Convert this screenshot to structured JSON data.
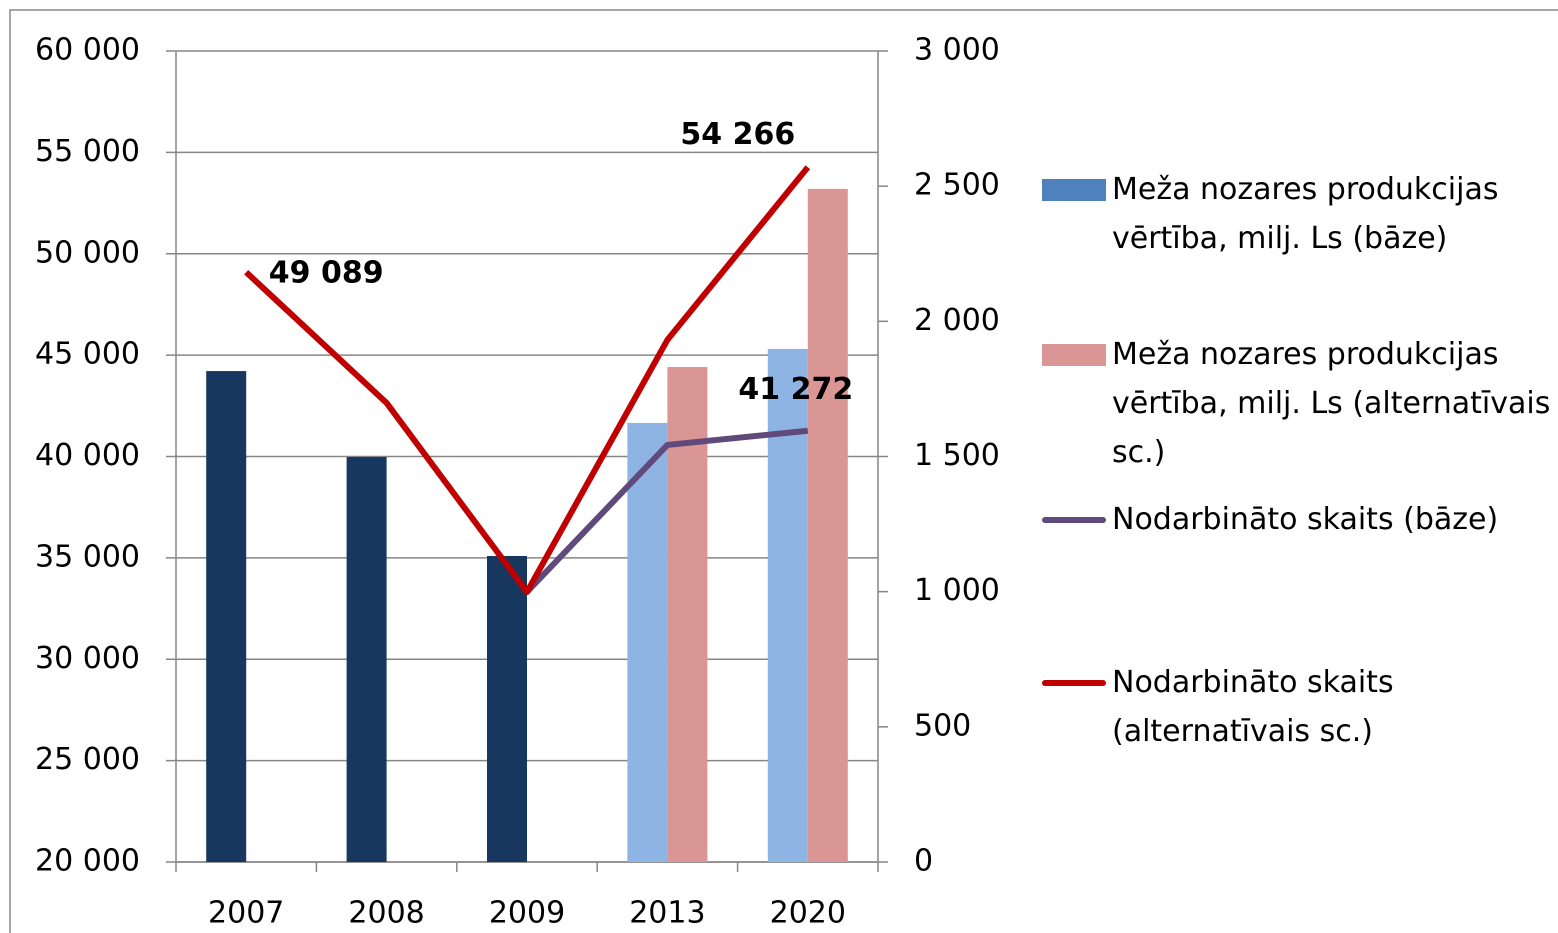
{
  "chart_data": {
    "type": "bar_line",
    "categories": [
      "2007",
      "2008",
      "2009",
      "2013",
      "2020"
    ],
    "series": [
      {
        "name": "Meža nozares produkcijas vērtība, milj. Ls (bāze)",
        "type": "bar",
        "axis": "y2",
        "color": "#4f81bd",
        "colors": [
          "#17375e",
          "#17375e",
          "#17375e",
          "#8db4e2",
          "#8db4e2"
        ],
        "values": [
          1816,
          1498,
          1132,
          1624,
          1898
        ]
      },
      {
        "name": "Meža nozares produkcijas vērtība, milj. Ls (alternatīvais sc.)",
        "type": "bar",
        "axis": "y2",
        "color": "#da9694",
        "values": [
          null,
          null,
          null,
          1831,
          2490
        ]
      },
      {
        "name": "Nodarbināto skaits (bāze)",
        "type": "line",
        "color": "#604a7b",
        "values": [
          null,
          null,
          33320,
          40570,
          41272
        ],
        "value_labels": [
          null,
          null,
          null,
          null,
          "41 272"
        ]
      },
      {
        "name": "Nodarbināto skaits (alternatīvais sc.)",
        "type": "line",
        "color": "#c00000",
        "values": [
          49089,
          42640,
          33320,
          45750,
          54266
        ],
        "value_labels": [
          "49 089",
          null,
          null,
          null,
          "54 266"
        ]
      }
    ],
    "ylim": [
      20000,
      60000
    ],
    "yticks": [
      {
        "value": 20000,
        "label": "20 000"
      },
      {
        "value": 25000,
        "label": "25 000"
      },
      {
        "value": 30000,
        "label": "30 000"
      },
      {
        "value": 35000,
        "label": "35 000"
      },
      {
        "value": 40000,
        "label": "40 000"
      },
      {
        "value": 45000,
        "label": "45 000"
      },
      {
        "value": 50000,
        "label": "50 000"
      },
      {
        "value": 55000,
        "label": "55 000"
      },
      {
        "value": 60000,
        "label": "60 000"
      }
    ],
    "y2lim": [
      0,
      3000
    ],
    "y2ticks": [
      0,
      500,
      {
        "value": 1000,
        "label": "1 000"
      },
      {
        "value": 1500,
        "label": "1 500"
      },
      {
        "value": 2000,
        "label": "2 000"
      },
      {
        "value": 2500,
        "label": "2 500"
      },
      {
        "value": 3000,
        "label": "3 000"
      }
    ],
    "grid": true,
    "legend": "right"
  }
}
